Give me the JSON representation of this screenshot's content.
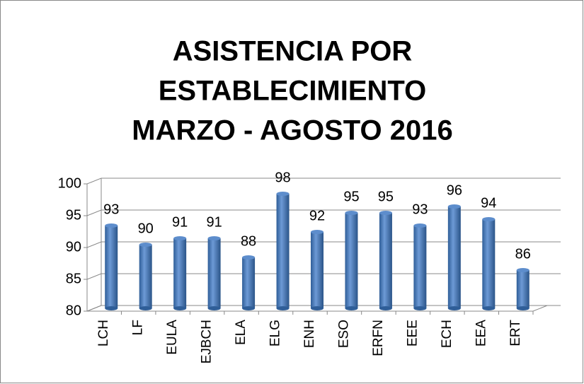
{
  "chart_data": {
    "type": "bar",
    "title": [
      "ASISTENCIA POR",
      "ESTABLECIMIENTO",
      "MARZO - AGOSTO 2016"
    ],
    "categories": [
      "LCH",
      "LF",
      "EULA",
      "EJBCH",
      "ELA",
      "ELG",
      "ENH",
      "ESO",
      "ERFN",
      "EEE",
      "ECH",
      "EEA",
      "ERT"
    ],
    "values": [
      93,
      90,
      91,
      91,
      88,
      98,
      92,
      95,
      95,
      93,
      96,
      94,
      86
    ],
    "color": "#4a7ebb",
    "ylim": [
      80,
      100
    ],
    "yticks": [
      80,
      85,
      90,
      95,
      100
    ],
    "grid": true
  }
}
